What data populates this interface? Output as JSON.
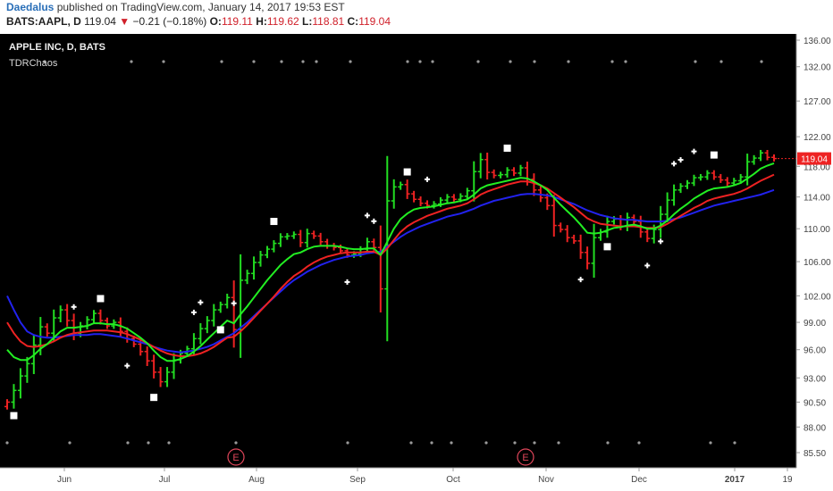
{
  "header": {
    "author": "Daedalus",
    "published_text": "published on TradingView.com, January 14, 2017 19:53 EST",
    "symbol": "BATS:AAPL, D",
    "last": "119.04",
    "arrow": "▼",
    "change": "−0.21 (−0.18%)",
    "o_label": "O:",
    "o_value": "119.11",
    "h_label": "H:",
    "h_value": "119.62",
    "l_label": "L:",
    "l_value": "118.81",
    "c_label": "C:",
    "c_value": "119.04"
  },
  "legend": {
    "title": "APPLE INC, D, BATS",
    "indicator": "TDRChaos"
  },
  "colors": {
    "background": "#000000",
    "up_bar": "#22dd22",
    "down_bar": "#ee2222",
    "ma_fast": "#22ee22",
    "ma_mid": "#ee2222",
    "ma_slow": "#2222ee",
    "price_label": "#ee2222"
  },
  "chart_data": {
    "type": "ohlc",
    "title": "APPLE INC, D, BATS",
    "x_ticks": [
      "Jun",
      "Jul",
      "Aug",
      "Sep",
      "Oct",
      "Nov",
      "Dec",
      "2017",
      "19"
    ],
    "y_ticks": [
      "136.00",
      "132.00",
      "127.00",
      "122.00",
      "119.04",
      "118.00",
      "114.00",
      "110.00",
      "106.00",
      "102.00",
      "99.00",
      "96.00",
      "93.00",
      "90.50",
      "88.00",
      "85.50"
    ],
    "ylim": [
      84,
      137
    ],
    "y_scale": "log",
    "last_price": 119.04,
    "close_series": [
      90.5,
      91.7,
      93.2,
      94.5,
      96.5,
      98.5,
      97.8,
      99.5,
      100.4,
      99.2,
      97.8,
      98.6,
      99.3,
      100.0,
      99.2,
      98.6,
      99.0,
      98.0,
      97.2,
      96.6,
      95.8,
      94.8,
      93.6,
      92.6,
      93.6,
      94.9,
      95.6,
      96.1,
      97.2,
      98.3,
      99.2,
      100.4,
      101.0,
      101.8,
      98.2,
      103.8,
      104.6,
      105.9,
      106.8,
      107.5,
      108.2,
      109.0,
      109.1,
      109.3,
      108.3,
      109.4,
      109.1,
      108.4,
      107.9,
      107.7,
      107.3,
      106.8,
      106.9,
      107.5,
      108.4,
      107.7,
      102.8,
      113.5,
      115.3,
      115.6,
      114.4,
      113.7,
      113.2,
      112.9,
      113.1,
      113.6,
      114.0,
      113.7,
      114.1,
      114.8,
      117.3,
      118.9,
      117.2,
      116.8,
      116.9,
      117.5,
      117.1,
      117.8,
      116.3,
      114.9,
      113.9,
      112.9,
      110.4,
      109.9,
      108.9,
      108.5,
      107.1,
      105.8,
      108.9,
      109.6,
      110.9,
      111.2,
      110.3,
      111.4,
      110.9,
      109.6,
      108.8,
      109.9,
      111.8,
      113.6,
      114.9,
      115.4,
      115.8,
      116.5,
      116.6,
      117.1,
      116.6,
      116.2,
      115.8,
      116.1,
      116.6,
      118.6,
      119.1,
      119.8,
      119.2,
      119.04
    ],
    "bar_colors": [
      "red",
      "green",
      "green",
      "green",
      "green",
      "green",
      "red",
      "green",
      "green",
      "red",
      "red",
      "green",
      "green",
      "green",
      "red",
      "red",
      "green",
      "red",
      "red",
      "red",
      "red",
      "red",
      "red",
      "red",
      "green",
      "green",
      "green",
      "green",
      "green",
      "green",
      "green",
      "green",
      "green",
      "green",
      "red",
      "green",
      "green",
      "green",
      "green",
      "green",
      "green",
      "green",
      "green",
      "green",
      "red",
      "green",
      "red",
      "red",
      "red",
      "red",
      "red",
      "red",
      "green",
      "green",
      "green",
      "red",
      "red",
      "green",
      "green",
      "green",
      "red",
      "red",
      "red",
      "red",
      "green",
      "green",
      "green",
      "red",
      "green",
      "green",
      "green",
      "green",
      "red",
      "red",
      "green",
      "green",
      "red",
      "green",
      "red",
      "red",
      "red",
      "red",
      "red",
      "red",
      "red",
      "red",
      "red",
      "red",
      "green",
      "green",
      "green",
      "green",
      "red",
      "green",
      "red",
      "red",
      "red",
      "green",
      "green",
      "green",
      "green",
      "green",
      "green",
      "green",
      "green",
      "green",
      "red",
      "red",
      "red",
      "green",
      "green",
      "green",
      "green",
      "green",
      "red",
      "red"
    ],
    "series": [
      {
        "values": [
          102.0,
          100.4,
          99.0,
          98.0,
          97.6,
          97.4,
          97.3,
          97.3,
          97.4,
          97.5,
          97.6,
          97.6,
          97.6,
          97.7,
          97.7,
          97.6,
          97.5,
          97.4,
          97.2,
          97.0,
          96.8,
          96.6,
          96.3,
          96.1,
          95.9,
          95.8,
          95.7,
          95.8,
          95.9,
          96.1,
          96.3,
          96.6,
          97.0,
          97.4,
          97.8,
          98.4,
          99.0,
          99.7,
          100.4,
          101.1,
          101.8,
          102.5,
          103.2,
          103.8,
          104.3,
          104.8,
          105.2,
          105.6,
          105.9,
          106.2,
          106.4,
          106.6,
          106.7,
          106.8,
          107.0,
          107.1,
          107.2,
          107.8,
          108.4,
          109.0,
          109.5,
          109.9,
          110.3,
          110.6,
          110.9,
          111.2,
          111.5,
          111.7,
          111.9,
          112.2,
          112.5,
          112.9,
          113.2,
          113.5,
          113.7,
          113.9,
          114.1,
          114.3,
          114.4,
          114.4,
          114.3,
          114.2,
          114.0,
          113.7,
          113.4,
          113.1,
          112.7,
          112.3,
          112.0,
          111.7,
          111.5,
          111.3,
          111.2,
          111.1,
          111.1,
          111.0,
          110.9,
          110.9,
          110.9,
          111.0,
          111.2,
          111.4,
          111.7,
          112.0,
          112.3,
          112.6,
          112.9,
          113.1,
          113.3,
          113.5,
          113.7,
          113.9,
          114.1,
          114.3,
          114.6,
          114.9
        ]
      },
      {
        "values": [
          99.0,
          97.8,
          96.9,
          96.4,
          96.3,
          96.4,
          96.6,
          96.9,
          97.3,
          97.6,
          97.8,
          97.9,
          98.0,
          98.1,
          98.1,
          98.1,
          98.0,
          97.9,
          97.7,
          97.4,
          97.1,
          96.7,
          96.3,
          95.9,
          95.6,
          95.4,
          95.3,
          95.3,
          95.4,
          95.6,
          95.9,
          96.3,
          96.8,
          97.3,
          97.4,
          98.0,
          98.7,
          99.5,
          100.3,
          101.1,
          101.9,
          102.8,
          103.6,
          104.3,
          104.8,
          105.4,
          105.9,
          106.3,
          106.6,
          106.8,
          107.0,
          107.1,
          107.1,
          107.1,
          107.2,
          107.2,
          106.8,
          107.6,
          108.6,
          109.6,
          110.3,
          110.8,
          111.2,
          111.6,
          111.9,
          112.2,
          112.5,
          112.7,
          112.9,
          113.2,
          113.7,
          114.3,
          114.7,
          115.0,
          115.3,
          115.6,
          115.8,
          116.0,
          116.0,
          115.8,
          115.5,
          115.1,
          114.5,
          113.9,
          113.3,
          112.7,
          112.0,
          111.3,
          110.9,
          110.6,
          110.5,
          110.4,
          110.3,
          110.3,
          110.3,
          110.2,
          110.1,
          110.1,
          110.2,
          110.6,
          111.1,
          111.6,
          112.1,
          112.6,
          113.0,
          113.5,
          113.8,
          114.0,
          114.2,
          114.4,
          114.7,
          115.1,
          115.6,
          116.1,
          116.5,
          116.9
        ]
      },
      {
        "values": [
          96.0,
          95.2,
          94.9,
          94.9,
          95.4,
          96.1,
          96.6,
          97.3,
          98.0,
          98.4,
          98.4,
          98.5,
          98.6,
          98.9,
          98.9,
          98.8,
          98.8,
          98.6,
          98.3,
          97.8,
          97.3,
          96.7,
          95.9,
          95.2,
          94.8,
          94.8,
          95.0,
          95.3,
          95.8,
          96.4,
          97.1,
          97.8,
          98.5,
          99.2,
          98.9,
          99.9,
          100.8,
          101.8,
          102.8,
          103.8,
          104.7,
          105.6,
          106.3,
          106.9,
          107.1,
          107.5,
          107.8,
          107.9,
          107.9,
          107.9,
          107.8,
          107.6,
          107.5,
          107.5,
          107.6,
          107.6,
          106.8,
          108.4,
          110.0,
          111.2,
          111.9,
          112.4,
          112.6,
          112.7,
          112.8,
          113.0,
          113.2,
          113.3,
          113.5,
          113.7,
          114.3,
          115.1,
          115.5,
          115.7,
          115.9,
          116.1,
          116.3,
          116.5,
          116.4,
          116.0,
          115.5,
          114.9,
          113.9,
          113.0,
          112.2,
          111.4,
          110.5,
          109.5,
          109.4,
          109.5,
          109.8,
          110.1,
          110.2,
          110.4,
          110.5,
          110.3,
          110.0,
          110.0,
          110.4,
          111.0,
          111.8,
          112.5,
          113.1,
          113.8,
          114.3,
          114.8,
          115.1,
          115.2,
          115.3,
          115.5,
          115.8,
          116.4,
          117.0,
          117.7,
          118.1,
          118.4
        ]
      }
    ],
    "earnings_markers": [
      "E",
      "E"
    ]
  }
}
